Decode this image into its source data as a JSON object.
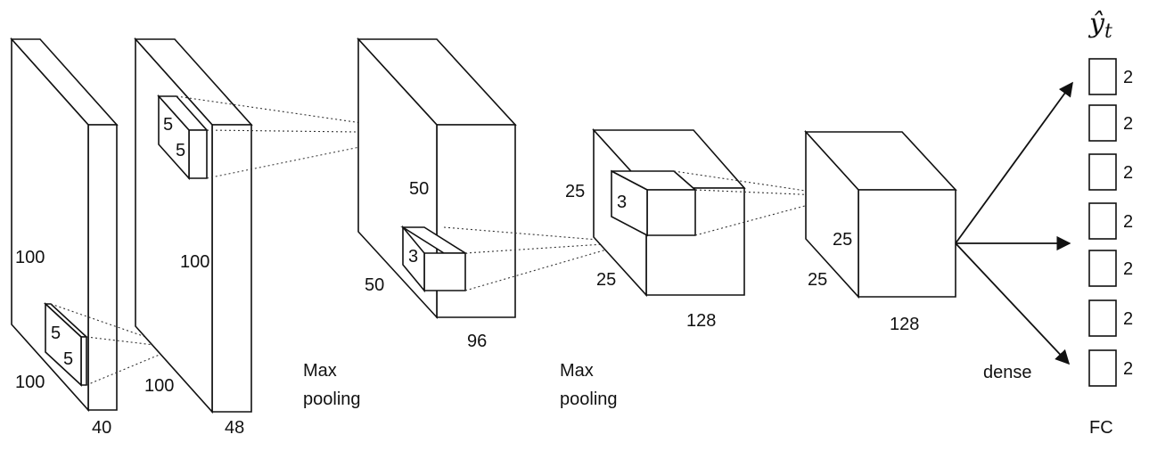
{
  "layer1": {
    "height": "100",
    "width": "100",
    "depth": "40",
    "kernel_a": "5",
    "kernel_b": "5"
  },
  "layer2": {
    "height": "100",
    "width": "100",
    "depth": "48",
    "kernel_a": "5",
    "kernel_b": "5"
  },
  "layer3": {
    "height": "50",
    "width": "50",
    "depth": "96",
    "kernel": "3"
  },
  "layer4": {
    "height": "25",
    "width": "25",
    "depth": "128",
    "kernel": "3"
  },
  "layer5": {
    "height": "25",
    "width": "25",
    "depth": "128"
  },
  "pool1": {
    "line1": "Max",
    "line2": "pooling"
  },
  "pool2": {
    "line1": "Max",
    "line2": "pooling"
  },
  "dense_label": "dense",
  "output": {
    "symbol": "ŷ",
    "subscript": "t",
    "fc_label": "FC",
    "units": [
      "2",
      "2",
      "2",
      "2",
      "2",
      "2",
      "2"
    ]
  }
}
